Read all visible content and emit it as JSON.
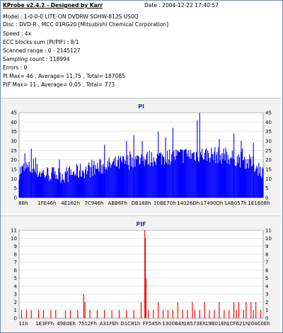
{
  "header": {
    "title": "KProbe v2.4.2 - Designed by Karr",
    "date": "Date : 2004-12-22 17:40:57"
  },
  "info_lines": [
    "Model : 1-0-0-0 LITE-ON DVDRW SOHW-812S  US0Q",
    "Disc : DVD-R , MCC 01RG20  [Mitsubishi Chemical Corporation]",
    "Speed : 4x",
    "ECC blocks sum (PI/PIF) : 8/1",
    "Scanned range : 0 - 2145127",
    "Sampling count : 118994",
    "Errors : 0",
    "PI Max= 46 , Average= 11,75 , Total= 187085",
    "PIF Max= 11 , Average= 0,05 , Total= 773"
  ],
  "chart_data": [
    {
      "type": "bar",
      "title": "PI",
      "color": "#0000ff",
      "ylim": [
        0,
        45
      ],
      "yticks": [
        0,
        5,
        10,
        15,
        20,
        25,
        30,
        35,
        40,
        45
      ],
      "xticks": [
        "8Bh",
        "1FE46h",
        "4E162h",
        "7C946h",
        "ABB6Fh",
        "DB188h",
        "10BE70h",
        "14026Dh",
        "17490Dh",
        "1AB057h",
        "1E1608h"
      ],
      "grid": true,
      "profile": [
        [
          0.0,
          13
        ],
        [
          0.03,
          15
        ],
        [
          0.1,
          12
        ],
        [
          0.18,
          11
        ],
        [
          0.25,
          13
        ],
        [
          0.32,
          15
        ],
        [
          0.4,
          17
        ],
        [
          0.48,
          19
        ],
        [
          0.55,
          20
        ],
        [
          0.62,
          21
        ],
        [
          0.7,
          22
        ],
        [
          0.78,
          22
        ],
        [
          0.85,
          21
        ],
        [
          0.92,
          19
        ],
        [
          0.97,
          16
        ],
        [
          1.0,
          13
        ]
      ],
      "peaks": [
        [
          0.74,
          46
        ],
        [
          0.73,
          41
        ],
        [
          0.63,
          37
        ],
        [
          0.57,
          35
        ],
        [
          0.47,
          33
        ],
        [
          0.88,
          34
        ],
        [
          0.91,
          30
        ],
        [
          0.82,
          31
        ],
        [
          0.35,
          28
        ],
        [
          0.96,
          29
        ],
        [
          0.05,
          26
        ],
        [
          0.44,
          30
        ],
        [
          0.6,
          32
        ]
      ]
    },
    {
      "type": "bar",
      "title": "PIF",
      "color": "#ff0000",
      "ylim": [
        0,
        11
      ],
      "yticks": [
        0,
        1,
        2,
        3,
        4,
        5,
        6,
        7,
        8,
        9,
        10,
        11
      ],
      "xticks": [
        "11h",
        "1E3FFh",
        "49E0Eh",
        "7512Fh",
        "A31FEh",
        "D1C81h",
        "FF545h",
        "1300B4h",
        "16573Eh",
        "19B01Eh",
        "1CF621h",
        "204C0Eh"
      ],
      "grid": true,
      "spikes": [
        [
          0.01,
          1
        ],
        [
          0.03,
          1
        ],
        [
          0.05,
          1
        ],
        [
          0.08,
          1
        ],
        [
          0.1,
          1
        ],
        [
          0.13,
          1
        ],
        [
          0.15,
          1
        ],
        [
          0.19,
          1
        ],
        [
          0.21,
          1
        ],
        [
          0.24,
          1
        ],
        [
          0.265,
          3
        ],
        [
          0.27,
          2
        ],
        [
          0.29,
          1
        ],
        [
          0.32,
          1
        ],
        [
          0.35,
          1
        ],
        [
          0.38,
          1
        ],
        [
          0.41,
          1
        ],
        [
          0.44,
          1
        ],
        [
          0.47,
          1
        ],
        [
          0.5,
          2
        ],
        [
          0.515,
          11
        ],
        [
          0.517,
          10
        ],
        [
          0.52,
          5
        ],
        [
          0.53,
          1
        ],
        [
          0.55,
          1
        ],
        [
          0.57,
          2
        ],
        [
          0.59,
          1
        ],
        [
          0.61,
          1
        ],
        [
          0.63,
          1
        ],
        [
          0.65,
          2
        ],
        [
          0.67,
          1
        ],
        [
          0.69,
          1
        ],
        [
          0.71,
          2
        ],
        [
          0.72,
          1
        ],
        [
          0.74,
          1
        ],
        [
          0.76,
          2
        ],
        [
          0.78,
          1
        ],
        [
          0.8,
          1
        ],
        [
          0.82,
          2
        ],
        [
          0.84,
          1
        ],
        [
          0.86,
          1
        ],
        [
          0.88,
          2
        ],
        [
          0.89,
          1
        ],
        [
          0.9,
          2
        ],
        [
          0.92,
          1
        ],
        [
          0.93,
          2
        ],
        [
          0.95,
          2
        ],
        [
          0.96,
          1
        ],
        [
          0.97,
          2
        ],
        [
          0.99,
          1
        ]
      ]
    }
  ]
}
